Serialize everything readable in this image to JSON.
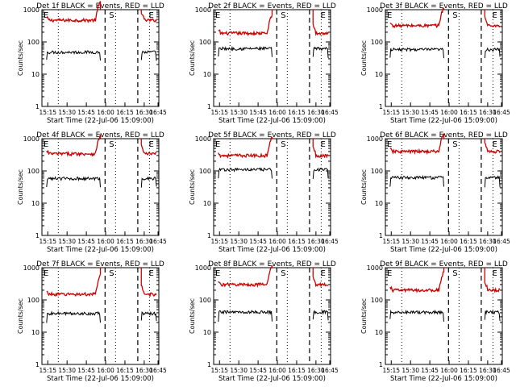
{
  "figure": {
    "background": "#ffffff",
    "events_color": "#000000",
    "lld_color": "#cc0000"
  },
  "chart_data": [
    {
      "type": "line",
      "title": "Det 1f BLACK = Events, RED = LLD",
      "xlabel": "Start Time (22-Jul-06 15:09:00)",
      "ylabel": "Counts/sec",
      "yscale": "log",
      "ylim": [
        1,
        1000
      ],
      "xlim": [
        0,
        100
      ],
      "yticks": [
        "1",
        "10",
        "100",
        "1000"
      ],
      "xticks": [
        {
          "x": 5,
          "label": "15:15"
        },
        {
          "x": 21.5,
          "label": "15:30"
        },
        {
          "x": 38,
          "label": "15:45"
        },
        {
          "x": 54.5,
          "label": "16:00"
        },
        {
          "x": 71,
          "label": "16:15"
        },
        {
          "x": 87.5,
          "label": "16:30"
        },
        {
          "x": 104,
          "label": "16:45"
        }
      ],
      "markers": [
        {
          "x": 0,
          "label": "E"
        },
        {
          "x": 56,
          "label": "S"
        },
        {
          "x": 90,
          "label": "E"
        }
      ],
      "dotted_lines": [
        14,
        63,
        92
      ],
      "dashed_lines": [
        54,
        82
      ],
      "segments": [
        [
          4,
          50
        ],
        [
          85,
          98
        ]
      ],
      "series": [
        {
          "name": "Events",
          "level": 48
        },
        {
          "name": "LLD",
          "level": 470
        }
      ]
    },
    {
      "type": "line",
      "title": "Det 2f BLACK = Events, RED = LLD",
      "xlabel": "Start Time (22-Jul-06 15:09:00)",
      "ylabel": "Counts/sec",
      "yscale": "log",
      "ylim": [
        1,
        1000
      ],
      "xlim": [
        0,
        100
      ],
      "yticks": [
        "1",
        "10",
        "100",
        "1000"
      ],
      "xticks": [
        {
          "x": 5,
          "label": "15:15"
        },
        {
          "x": 21.5,
          "label": "15:30"
        },
        {
          "x": 38,
          "label": "15:45"
        },
        {
          "x": 54.5,
          "label": "16:00"
        },
        {
          "x": 71,
          "label": "16:15"
        },
        {
          "x": 87.5,
          "label": "16:30"
        },
        {
          "x": 104,
          "label": "16:45"
        }
      ],
      "markers": [
        {
          "x": 0,
          "label": "E"
        },
        {
          "x": 56,
          "label": "S"
        },
        {
          "x": 90,
          "label": "E"
        }
      ],
      "dotted_lines": [
        14,
        63,
        92
      ],
      "dashed_lines": [
        54,
        82
      ],
      "segments": [
        [
          4,
          50
        ],
        [
          85,
          98
        ]
      ],
      "series": [
        {
          "name": "Events",
          "level": 62
        },
        {
          "name": "LLD",
          "level": 185
        }
      ]
    },
    {
      "type": "line",
      "title": "Det 3f BLACK = Events, RED = LLD",
      "xlabel": "Start Time (22-Jul-06 15:09:00)",
      "ylabel": "Counts/sec",
      "yscale": "log",
      "ylim": [
        1,
        1000
      ],
      "xlim": [
        0,
        100
      ],
      "yticks": [
        "1",
        "10",
        "100",
        "1000"
      ],
      "xticks": [
        {
          "x": 5,
          "label": "15:15"
        },
        {
          "x": 21.5,
          "label": "15:30"
        },
        {
          "x": 38,
          "label": "15:45"
        },
        {
          "x": 54.5,
          "label": "16:00"
        },
        {
          "x": 71,
          "label": "16:15"
        },
        {
          "x": 87.5,
          "label": "16:30"
        },
        {
          "x": 104,
          "label": "16:45"
        }
      ],
      "markers": [
        {
          "x": 0,
          "label": "E"
        },
        {
          "x": 56,
          "label": "S"
        },
        {
          "x": 90,
          "label": "E"
        }
      ],
      "dotted_lines": [
        14,
        63,
        92
      ],
      "dashed_lines": [
        54,
        82
      ],
      "segments": [
        [
          4,
          50
        ],
        [
          85,
          98
        ]
      ],
      "series": [
        {
          "name": "Events",
          "level": 58
        },
        {
          "name": "LLD",
          "level": 320
        }
      ]
    },
    {
      "type": "line",
      "title": "Det 4f BLACK = Events, RED = LLD",
      "xlabel": "Start Time (22-Jul-06 15:09:00)",
      "ylabel": "Counts/sec",
      "yscale": "log",
      "ylim": [
        1,
        1000
      ],
      "xlim": [
        0,
        100
      ],
      "yticks": [
        "1",
        "10",
        "100",
        "1000"
      ],
      "xticks": [
        {
          "x": 5,
          "label": "15:15"
        },
        {
          "x": 21.5,
          "label": "15:30"
        },
        {
          "x": 38,
          "label": "15:45"
        },
        {
          "x": 54.5,
          "label": "16:00"
        },
        {
          "x": 71,
          "label": "16:15"
        },
        {
          "x": 87.5,
          "label": "16:30"
        },
        {
          "x": 104,
          "label": "16:45"
        }
      ],
      "markers": [
        {
          "x": 0,
          "label": "E"
        },
        {
          "x": 56,
          "label": "S"
        },
        {
          "x": 90,
          "label": "E"
        }
      ],
      "dotted_lines": [
        14,
        63,
        92
      ],
      "dashed_lines": [
        54,
        82
      ],
      "segments": [
        [
          4,
          50
        ],
        [
          85,
          98
        ]
      ],
      "series": [
        {
          "name": "Events",
          "level": 58
        },
        {
          "name": "LLD",
          "level": 340
        }
      ]
    },
    {
      "type": "line",
      "title": "Det 5f BLACK = Events, RED = LLD",
      "xlabel": "Start Time (22-Jul-06 15:09:00)",
      "ylabel": "Counts/sec",
      "yscale": "log",
      "ylim": [
        1,
        1000
      ],
      "xlim": [
        0,
        100
      ],
      "yticks": [
        "1",
        "10",
        "100",
        "1000"
      ],
      "xticks": [
        {
          "x": 5,
          "label": "15:15"
        },
        {
          "x": 21.5,
          "label": "15:30"
        },
        {
          "x": 38,
          "label": "15:45"
        },
        {
          "x": 54.5,
          "label": "16:00"
        },
        {
          "x": 71,
          "label": "16:15"
        },
        {
          "x": 87.5,
          "label": "16:30"
        },
        {
          "x": 104,
          "label": "16:45"
        }
      ],
      "markers": [
        {
          "x": 0,
          "label": "E"
        },
        {
          "x": 56,
          "label": "S"
        },
        {
          "x": 90,
          "label": "E"
        }
      ],
      "dotted_lines": [
        14,
        63,
        92
      ],
      "dashed_lines": [
        54,
        82
      ],
      "segments": [
        [
          4,
          50
        ],
        [
          85,
          98
        ]
      ],
      "series": [
        {
          "name": "Events",
          "level": 110
        },
        {
          "name": "LLD",
          "level": 300
        }
      ]
    },
    {
      "type": "line",
      "title": "Det 6f BLACK = Events, RED = LLD",
      "xlabel": "Start Time (22-Jul-06 15:09:00)",
      "ylabel": "Counts/sec",
      "yscale": "log",
      "ylim": [
        1,
        1000
      ],
      "xlim": [
        0,
        100
      ],
      "yticks": [
        "1",
        "10",
        "100",
        "1000"
      ],
      "xticks": [
        {
          "x": 5,
          "label": "15:15"
        },
        {
          "x": 21.5,
          "label": "15:30"
        },
        {
          "x": 38,
          "label": "15:45"
        },
        {
          "x": 54.5,
          "label": "16:00"
        },
        {
          "x": 71,
          "label": "16:15"
        },
        {
          "x": 87.5,
          "label": "16:30"
        },
        {
          "x": 104,
          "label": "16:45"
        }
      ],
      "markers": [
        {
          "x": 0,
          "label": "E"
        },
        {
          "x": 56,
          "label": "S"
        },
        {
          "x": 90,
          "label": "E"
        }
      ],
      "dotted_lines": [
        14,
        63,
        92
      ],
      "dashed_lines": [
        54,
        82
      ],
      "segments": [
        [
          4,
          50
        ],
        [
          85,
          98
        ]
      ],
      "series": [
        {
          "name": "Events",
          "level": 62
        },
        {
          "name": "LLD",
          "level": 400
        }
      ]
    },
    {
      "type": "line",
      "title": "Det 7f BLACK = Events, RED = LLD",
      "xlabel": "Start Time (22-Jul-06 15:09:00)",
      "ylabel": "Counts/sec",
      "yscale": "log",
      "ylim": [
        1,
        1000
      ],
      "xlim": [
        0,
        100
      ],
      "yticks": [
        "1",
        "10",
        "100",
        "1000"
      ],
      "xticks": [
        {
          "x": 5,
          "label": "15:15"
        },
        {
          "x": 21.5,
          "label": "15:30"
        },
        {
          "x": 38,
          "label": "15:45"
        },
        {
          "x": 54.5,
          "label": "16:00"
        },
        {
          "x": 71,
          "label": "16:15"
        },
        {
          "x": 87.5,
          "label": "16:30"
        },
        {
          "x": 104,
          "label": "16:45"
        }
      ],
      "markers": [
        {
          "x": 0,
          "label": "E"
        },
        {
          "x": 56,
          "label": "S"
        },
        {
          "x": 90,
          "label": "E"
        }
      ],
      "dotted_lines": [
        14,
        63,
        92
      ],
      "dashed_lines": [
        54,
        82
      ],
      "segments": [
        [
          4,
          50
        ],
        [
          85,
          98
        ]
      ],
      "series": [
        {
          "name": "Events",
          "level": 38
        },
        {
          "name": "LLD",
          "level": 150
        }
      ]
    },
    {
      "type": "line",
      "title": "Det 8f BLACK = Events, RED = LLD",
      "xlabel": "Start Time (22-Jul-06 15:09:00)",
      "ylabel": "Counts/sec",
      "yscale": "log",
      "ylim": [
        1,
        1000
      ],
      "xlim": [
        0,
        100
      ],
      "yticks": [
        "1",
        "10",
        "100",
        "1000"
      ],
      "xticks": [
        {
          "x": 5,
          "label": "15:15"
        },
        {
          "x": 21.5,
          "label": "15:30"
        },
        {
          "x": 38,
          "label": "15:45"
        },
        {
          "x": 54.5,
          "label": "16:00"
        },
        {
          "x": 71,
          "label": "16:15"
        },
        {
          "x": 87.5,
          "label": "16:30"
        },
        {
          "x": 104,
          "label": "16:45"
        }
      ],
      "markers": [
        {
          "x": 0,
          "label": "E"
        },
        {
          "x": 56,
          "label": "S"
        },
        {
          "x": 90,
          "label": "E"
        }
      ],
      "dotted_lines": [
        14,
        63,
        92
      ],
      "dashed_lines": [
        54,
        82
      ],
      "segments": [
        [
          4,
          50
        ],
        [
          85,
          98
        ]
      ],
      "series": [
        {
          "name": "Events",
          "level": 42
        },
        {
          "name": "LLD",
          "level": 300
        }
      ]
    },
    {
      "type": "line",
      "title": "Det 9f BLACK = Events, RED = LLD",
      "xlabel": "Start Time (22-Jul-06 15:09:00)",
      "ylabel": "Counts/sec",
      "yscale": "log",
      "ylim": [
        1,
        1000
      ],
      "xlim": [
        0,
        100
      ],
      "yticks": [
        "1",
        "10",
        "100",
        "1000"
      ],
      "xticks": [
        {
          "x": 5,
          "label": "15:15"
        },
        {
          "x": 21.5,
          "label": "15:30"
        },
        {
          "x": 38,
          "label": "15:45"
        },
        {
          "x": 54.5,
          "label": "16:00"
        },
        {
          "x": 71,
          "label": "16:15"
        },
        {
          "x": 87.5,
          "label": "16:30"
        },
        {
          "x": 104,
          "label": "16:45"
        }
      ],
      "markers": [
        {
          "x": 0,
          "label": "E"
        },
        {
          "x": 56,
          "label": "S"
        },
        {
          "x": 90,
          "label": "E"
        }
      ],
      "dotted_lines": [
        14,
        63,
        92
      ],
      "dashed_lines": [
        54,
        82
      ],
      "segments": [
        [
          4,
          50
        ],
        [
          85,
          98
        ]
      ],
      "series": [
        {
          "name": "Events",
          "level": 42
        },
        {
          "name": "LLD",
          "level": 200
        }
      ]
    }
  ]
}
